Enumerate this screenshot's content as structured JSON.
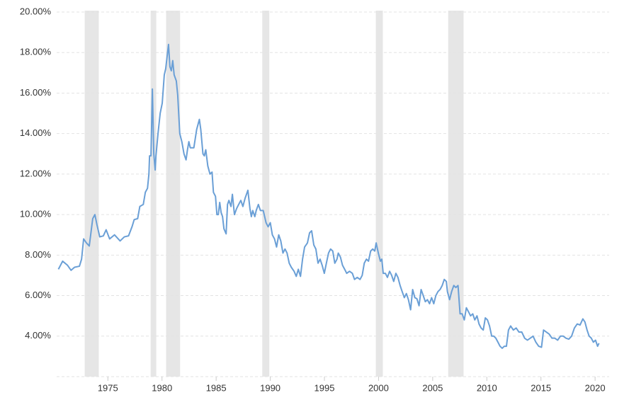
{
  "chart_data": {
    "type": "line",
    "color": "#6a9fd6",
    "grid": true,
    "xlim": [
      1970.27,
      2021.3
    ],
    "ylim": [
      2,
      20
    ],
    "xticks": [
      1975,
      1980,
      1985,
      1990,
      1995,
      2000,
      2005,
      2010,
      2015,
      2020
    ],
    "yticks": [
      {
        "value": 4,
        "label": "4.00%"
      },
      {
        "value": 6,
        "label": "6.00%"
      },
      {
        "value": 8,
        "label": "8.00%"
      },
      {
        "value": 10,
        "label": "10.00%"
      },
      {
        "value": 12,
        "label": "12.00%"
      },
      {
        "value": 14,
        "label": "14.00%"
      },
      {
        "value": 16,
        "label": "16.00%"
      },
      {
        "value": 18,
        "label": "18.00%"
      },
      {
        "value": 20,
        "label": "20.00%"
      }
    ],
    "shaded_ranges": [
      [
        1972.86,
        1974.16
      ],
      [
        1978.95,
        1979.47
      ],
      [
        1980.38,
        1981.67
      ],
      [
        1989.26,
        1989.91
      ],
      [
        1999.75,
        2000.4
      ],
      [
        2006.43,
        2007.85
      ]
    ],
    "shade_color": "#e6e6e6",
    "x": [
      1970.43,
      1970.82,
      1971.27,
      1971.6,
      1971.92,
      1972.37,
      1972.57,
      1972.76,
      1973.02,
      1973.28,
      1973.41,
      1973.6,
      1973.8,
      1973.99,
      1974.25,
      1974.58,
      1974.84,
      1975.16,
      1975.61,
      1976.13,
      1976.52,
      1976.91,
      1977.23,
      1977.43,
      1977.75,
      1977.95,
      1978.27,
      1978.46,
      1978.66,
      1978.79,
      1978.85,
      1978.98,
      1979.11,
      1979.24,
      1979.37,
      1979.44,
      1979.63,
      1979.83,
      1980.02,
      1980.21,
      1980.34,
      1980.47,
      1980.6,
      1980.73,
      1980.86,
      1980.99,
      1981.12,
      1981.32,
      1981.45,
      1981.64,
      1981.83,
      1982.03,
      1982.22,
      1982.35,
      1982.48,
      1982.61,
      1982.94,
      1983.2,
      1983.45,
      1983.58,
      1983.78,
      1983.91,
      1984.04,
      1984.23,
      1984.43,
      1984.62,
      1984.75,
      1984.94,
      1985.07,
      1985.2,
      1985.33,
      1985.46,
      1985.59,
      1985.72,
      1985.92,
      1986.05,
      1986.18,
      1986.37,
      1986.5,
      1986.69,
      1986.89,
      1987.08,
      1987.28,
      1987.47,
      1987.67,
      1987.93,
      1988.12,
      1988.25,
      1988.38,
      1988.57,
      1988.7,
      1988.9,
      1989.09,
      1989.35,
      1989.61,
      1989.8,
      1990.0,
      1990.19,
      1990.39,
      1990.58,
      1990.78,
      1990.97,
      1991.17,
      1991.36,
      1991.55,
      1991.75,
      1991.94,
      1992.2,
      1992.4,
      1992.59,
      1992.79,
      1992.98,
      1993.17,
      1993.43,
      1993.63,
      1993.82,
      1994.02,
      1994.21,
      1994.41,
      1994.6,
      1994.79,
      1994.99,
      1995.18,
      1995.38,
      1995.57,
      1995.77,
      1995.96,
      1996.16,
      1996.28,
      1996.48,
      1996.67,
      1996.87,
      1997.06,
      1997.32,
      1997.58,
      1997.78,
      1998.03,
      1998.29,
      1998.49,
      1998.68,
      1998.88,
      1999.07,
      1999.27,
      1999.46,
      1999.65,
      1999.78,
      1999.98,
      2000.17,
      2000.3,
      2000.43,
      2000.63,
      2000.82,
      2001.02,
      2001.21,
      2001.4,
      2001.6,
      2001.79,
      2001.99,
      2002.18,
      2002.38,
      2002.57,
      2002.76,
      2002.96,
      2003.15,
      2003.35,
      2003.54,
      2003.74,
      2003.93,
      2004.13,
      2004.32,
      2004.51,
      2004.71,
      2004.9,
      2005.1,
      2005.29,
      2005.49,
      2005.68,
      2005.88,
      2006.07,
      2006.26,
      2006.36,
      2006.56,
      2006.75,
      2006.95,
      2007.14,
      2007.34,
      2007.53,
      2007.72,
      2007.92,
      2008.11,
      2008.31,
      2008.5,
      2008.7,
      2008.89,
      2009.09,
      2009.28,
      2009.47,
      2009.67,
      2009.86,
      2010.06,
      2010.25,
      2010.45,
      2010.64,
      2010.83,
      2011.03,
      2011.22,
      2011.42,
      2011.61,
      2011.81,
      2012.0,
      2012.2,
      2012.45,
      2012.71,
      2012.97,
      2013.23,
      2013.49,
      2013.75,
      2014.01,
      2014.27,
      2014.53,
      2014.79,
      2015.05,
      2015.24,
      2015.5,
      2015.76,
      2016.02,
      2016.28,
      2016.54,
      2016.8,
      2017.06,
      2017.31,
      2017.57,
      2017.83,
      2018.09,
      2018.35,
      2018.61,
      2018.87,
      2019.06,
      2019.26,
      2019.45,
      2019.65,
      2019.84,
      2020.04,
      2020.23,
      2020.36
    ],
    "values": [
      7.3,
      7.7,
      7.5,
      7.25,
      7.4,
      7.45,
      7.8,
      8.8,
      8.6,
      8.45,
      9.0,
      9.8,
      10.0,
      9.5,
      8.9,
      8.95,
      9.25,
      8.8,
      9.0,
      8.7,
      8.9,
      8.95,
      9.4,
      9.75,
      9.8,
      10.4,
      10.5,
      11.1,
      11.3,
      12.0,
      12.9,
      12.9,
      16.2,
      13.0,
      12.2,
      12.9,
      14.0,
      15.0,
      15.5,
      16.9,
      17.2,
      17.8,
      18.4,
      17.3,
      17.1,
      17.6,
      16.9,
      16.6,
      15.9,
      14.0,
      13.6,
      13.0,
      12.7,
      13.2,
      13.6,
      13.3,
      13.3,
      14.2,
      14.7,
      14.2,
      13.0,
      12.9,
      13.2,
      12.4,
      12.0,
      12.1,
      11.1,
      10.9,
      10.0,
      10.0,
      10.6,
      10.1,
      9.9,
      9.3,
      9.05,
      10.5,
      10.7,
      10.4,
      11.0,
      10.0,
      10.3,
      10.5,
      10.7,
      10.4,
      10.8,
      11.2,
      10.3,
      9.9,
      10.2,
      9.9,
      10.2,
      10.5,
      10.2,
      10.2,
      9.6,
      9.4,
      9.6,
      9.0,
      8.8,
      8.4,
      9.0,
      8.7,
      8.1,
      8.3,
      8.1,
      7.6,
      7.4,
      7.2,
      6.95,
      7.3,
      6.95,
      7.8,
      8.4,
      8.6,
      9.1,
      9.2,
      8.5,
      8.3,
      7.6,
      7.8,
      7.5,
      7.1,
      7.6,
      8.1,
      8.3,
      8.2,
      7.6,
      7.8,
      8.1,
      7.9,
      7.5,
      7.3,
      7.1,
      7.2,
      7.1,
      6.8,
      6.9,
      6.8,
      7.0,
      7.6,
      7.8,
      7.7,
      8.2,
      8.3,
      8.2,
      8.6,
      8.1,
      7.7,
      7.8,
      7.1,
      7.1,
      6.9,
      7.2,
      7.0,
      6.7,
      7.1,
      6.9,
      6.5,
      6.2,
      5.9,
      6.1,
      5.8,
      5.3,
      6.3,
      5.9,
      5.85,
      5.5,
      6.3,
      6.0,
      5.7,
      5.8,
      5.6,
      5.9,
      5.6,
      6.0,
      6.2,
      6.3,
      6.5,
      6.8,
      6.7,
      6.2,
      5.8,
      6.2,
      6.5,
      6.4,
      6.5,
      5.1,
      5.1,
      4.8,
      5.4,
      5.2,
      5.0,
      5.1,
      4.8,
      5.0,
      4.6,
      4.4,
      4.3,
      4.9,
      4.8,
      4.5,
      4.0,
      4.0,
      3.9,
      3.7,
      3.5,
      3.4,
      3.5,
      3.5,
      4.3,
      4.5,
      4.3,
      4.4,
      4.2,
      4.2,
      3.9,
      3.8,
      3.9,
      4.0,
      3.7,
      3.5,
      3.45,
      4.3,
      4.2,
      4.1,
      3.9,
      3.9,
      3.8,
      4.0,
      4.0,
      3.9,
      3.85,
      4.0,
      4.4,
      4.6,
      4.55,
      4.85,
      4.7,
      4.3,
      4.0,
      3.9,
      3.7,
      3.8,
      3.5,
      3.65
    ]
  }
}
